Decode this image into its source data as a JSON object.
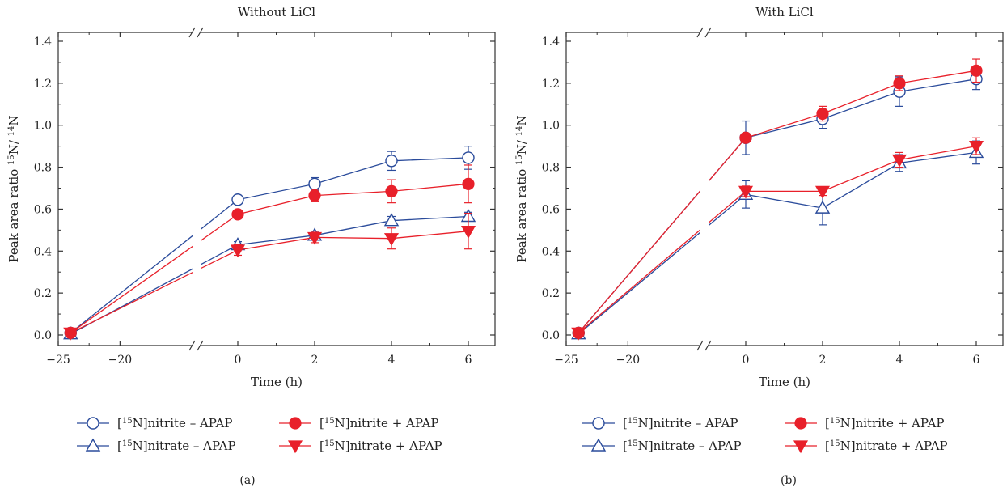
{
  "figure": {
    "panel_letters": [
      "(a)",
      "(b)"
    ]
  },
  "legend": [
    {
      "key": "nitrite_minus",
      "prefix": "[",
      "sup": "15",
      "suffix": "N]nitrite – APAP",
      "marker": "circle-open",
      "color": "#2a4b9b"
    },
    {
      "key": "nitrate_minus",
      "prefix": "[",
      "sup": "15",
      "suffix": "N]nitrate – APAP",
      "marker": "triangle-up-open",
      "color": "#2a4b9b"
    },
    {
      "key": "nitrite_plus",
      "prefix": "[",
      "sup": "15",
      "suffix": "N]nitrite + APAP",
      "marker": "circle-filled",
      "color": "#e8202a"
    },
    {
      "key": "nitrate_plus",
      "prefix": "[",
      "sup": "15",
      "suffix": "N]nitrate + APAP",
      "marker": "triangle-down-filled",
      "color": "#e8202a"
    }
  ],
  "colors": {
    "blue": "#2a4b9b",
    "red": "#e8202a"
  },
  "chart_data": [
    {
      "type": "line",
      "panel": "(a)",
      "title": "Without LiCl",
      "xlabel": "Time (h)",
      "ylabel": {
        "pre": "Peak area ratio ",
        "sup1": "15",
        "mid": "N/ ",
        "sup2": "14",
        "post": "N"
      },
      "xlim": [
        -25,
        6
      ],
      "x_break": true,
      "ylim": [
        -0.05,
        1.45
      ],
      "xticks": [
        -25,
        -20,
        0,
        2,
        4,
        6
      ],
      "xtick_labels": [
        "−25",
        "−20",
        "0",
        "2",
        "4",
        "6"
      ],
      "yticks": [
        0.0,
        0.2,
        0.4,
        0.6,
        0.8,
        1.0,
        1.2,
        1.4
      ],
      "ytick_labels": [
        "0.0",
        "0.2",
        "0.4",
        "0.6",
        "0.8",
        "1.0",
        "1.2",
        "1.4"
      ],
      "x": [
        -24,
        0,
        2,
        4,
        6
      ],
      "series": [
        {
          "key": "nitrite_minus",
          "values": [
            0.01,
            0.645,
            0.72,
            0.83,
            0.845
          ],
          "errors": [
            0.01,
            0.02,
            0.03,
            0.045,
            0.055
          ]
        },
        {
          "key": "nitrite_plus",
          "values": [
            0.01,
            0.575,
            0.665,
            0.685,
            0.72
          ],
          "errors": [
            0.01,
            0.015,
            0.03,
            0.055,
            0.09
          ]
        },
        {
          "key": "nitrate_minus",
          "values": [
            0.005,
            0.43,
            0.475,
            0.545,
            0.565
          ],
          "errors": [
            0.005,
            0.015,
            0.02,
            0.02,
            0.02
          ]
        },
        {
          "key": "nitrate_plus",
          "values": [
            0.01,
            0.405,
            0.465,
            0.46,
            0.495
          ],
          "errors": [
            0.01,
            0.025,
            0.025,
            0.05,
            0.085
          ]
        }
      ]
    },
    {
      "type": "line",
      "panel": "(b)",
      "title": "With LiCl",
      "xlabel": "Time (h)",
      "ylabel": {
        "pre": "Peak area ratio ",
        "sup1": "15",
        "mid": "N/ ",
        "sup2": "14",
        "post": "N"
      },
      "xlim": [
        -25,
        6
      ],
      "x_break": true,
      "ylim": [
        -0.05,
        1.45
      ],
      "xticks": [
        -25,
        -20,
        0,
        2,
        4,
        6
      ],
      "xtick_labels": [
        "−25",
        "−20",
        "0",
        "2",
        "4",
        "6"
      ],
      "yticks": [
        0.0,
        0.2,
        0.4,
        0.6,
        0.8,
        1.0,
        1.2,
        1.4
      ],
      "ytick_labels": [
        "0.0",
        "0.2",
        "0.4",
        "0.6",
        "0.8",
        "1.0",
        "1.2",
        "1.4"
      ],
      "x": [
        -24,
        0,
        2,
        4,
        6
      ],
      "series": [
        {
          "key": "nitrite_minus",
          "values": [
            0.01,
            0.94,
            1.03,
            1.16,
            1.22
          ],
          "errors": [
            0.01,
            0.08,
            0.045,
            0.07,
            0.05
          ]
        },
        {
          "key": "nitrite_plus",
          "values": [
            0.01,
            0.94,
            1.055,
            1.2,
            1.26
          ],
          "errors": [
            0.01,
            0.02,
            0.035,
            0.035,
            0.055
          ]
        },
        {
          "key": "nitrate_minus",
          "values": [
            0.005,
            0.67,
            0.605,
            0.82,
            0.87
          ],
          "errors": [
            0.005,
            0.065,
            0.08,
            0.04,
            0.055
          ]
        },
        {
          "key": "nitrate_plus",
          "values": [
            0.01,
            0.685,
            0.685,
            0.835,
            0.9
          ],
          "errors": [
            0.01,
            0.025,
            0.02,
            0.035,
            0.04
          ]
        }
      ]
    }
  ]
}
